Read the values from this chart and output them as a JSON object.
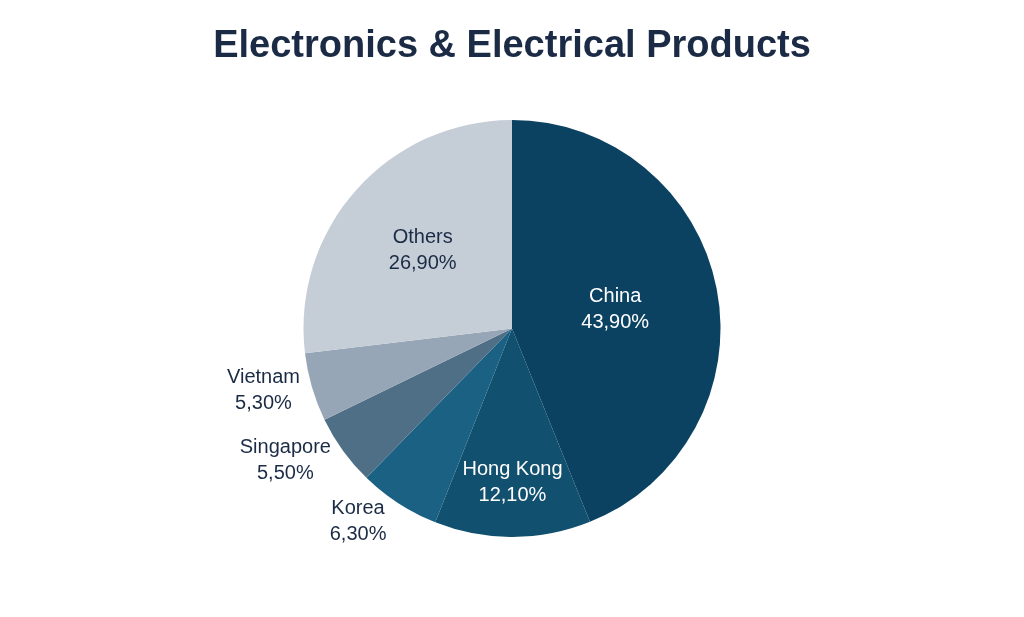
{
  "chart_data": {
    "type": "pie",
    "title": "Electronics & Electrical Products",
    "categories": [
      "China",
      "Hong Kong",
      "Korea",
      "Singapore",
      "Vietnam",
      "Others"
    ],
    "values": [
      43.9,
      12.1,
      6.3,
      5.5,
      5.3,
      26.9
    ],
    "value_labels": [
      "43,90%",
      "12,10%",
      "6,30%",
      "5,50%",
      "5,30%",
      "26,90%"
    ],
    "colors": [
      "#0b4262",
      "#11506f",
      "#1a6184",
      "#4f6f86",
      "#97a6b6",
      "#c5cdd7"
    ],
    "legend": false
  }
}
